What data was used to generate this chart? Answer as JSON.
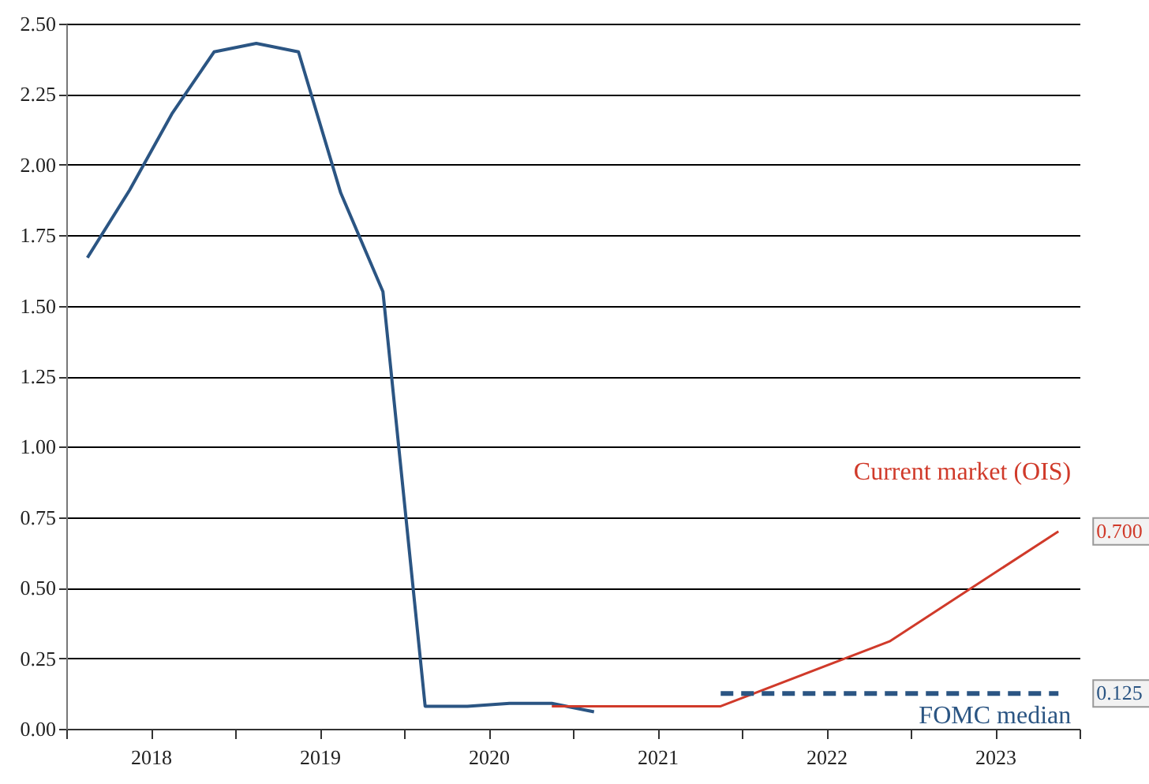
{
  "chart_data": {
    "type": "line",
    "xlim": [
      2018,
      2024
    ],
    "xticks": [
      {
        "value": 2018,
        "label": null
      },
      {
        "value": 2018.5,
        "label": "2018"
      },
      {
        "value": 2019,
        "label": null
      },
      {
        "value": 2019.5,
        "label": "2019"
      },
      {
        "value": 2020,
        "label": null
      },
      {
        "value": 2020.5,
        "label": "2020"
      },
      {
        "value": 2021,
        "label": null
      },
      {
        "value": 2021.5,
        "label": "2021"
      },
      {
        "value": 2022,
        "label": null
      },
      {
        "value": 2022.5,
        "label": "2022"
      },
      {
        "value": 2023,
        "label": null
      },
      {
        "value": 2023.5,
        "label": "2023"
      },
      {
        "value": 2024,
        "label": null
      }
    ],
    "ylim": [
      0,
      2.5
    ],
    "yticks": [
      {
        "value": 0,
        "label": "0.00"
      },
      {
        "value": 0.25,
        "label": "0.25"
      },
      {
        "value": 0.5,
        "label": "0.50"
      },
      {
        "value": 0.75,
        "label": "0.75"
      },
      {
        "value": 1,
        "label": "1.00"
      },
      {
        "value": 1.25,
        "label": "1.25"
      },
      {
        "value": 1.5,
        "label": "1.50"
      },
      {
        "value": 1.75,
        "label": "1.75"
      },
      {
        "value": 2,
        "label": "2.00"
      },
      {
        "value": 2.25,
        "label": "2.25"
      },
      {
        "value": 2.5,
        "label": "2.50"
      }
    ],
    "grid": "y",
    "legend": false,
    "series": [
      {
        "color": "#2b5583",
        "x": [
          2018.125,
          2018.375,
          2018.625,
          2018.875,
          2019.125,
          2019.375,
          2019.625,
          2019.875,
          2020.125,
          2020.375,
          2020.625,
          2020.875,
          2021.125
        ],
        "values": [
          1.67,
          1.91,
          2.18,
          2.4,
          2.43,
          2.4,
          1.9,
          1.55,
          0.08,
          0.08,
          0.09,
          0.09,
          0.06
        ]
      },
      {
        "name": "Current market (OIS)",
        "color": "#d03a2a",
        "x": [
          2020.875,
          2021.875,
          2022.875,
          2023.875
        ],
        "values": [
          0.08,
          0.08,
          0.31,
          0.7
        ],
        "value_labels": [
          null,
          null,
          null,
          "0.700"
        ]
      },
      {
        "name": "FOMC median",
        "color": "#2b5583",
        "line_style": "dashed",
        "x": [
          2021.875,
          2023.875
        ],
        "values": [
          0.125,
          0.125
        ],
        "value_labels": [
          null,
          "0.125"
        ]
      }
    ]
  }
}
